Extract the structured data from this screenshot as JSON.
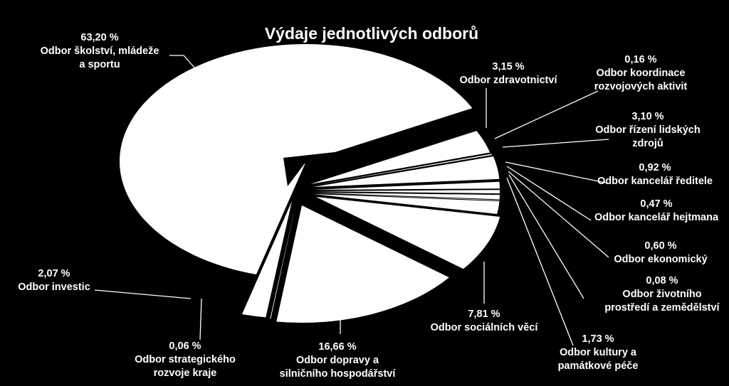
{
  "chart_data": {
    "type": "pie",
    "title": "Výdaje jednotlivých odborů",
    "slices": [
      {
        "label": [
          "Odbor školství, mládeže",
          "a sportu"
        ],
        "value_label": "63,20 %",
        "value": 63.2
      },
      {
        "label": [
          "Odbor zdravotnictví"
        ],
        "value_label": "3,15 %",
        "value": 3.15
      },
      {
        "label": [
          "Odbor koordinace",
          "rozvojových aktivit"
        ],
        "value_label": "0,16 %",
        "value": 0.16
      },
      {
        "label": [
          "Odbor řízení lidských",
          "zdrojů"
        ],
        "value_label": "3,10 %",
        "value": 3.1
      },
      {
        "label": [
          "Odbor kancelář ředitele"
        ],
        "value_label": "0,92 %",
        "value": 0.92
      },
      {
        "label": [
          "Odbor kancelář hejtmana"
        ],
        "value_label": "0,47 %",
        "value": 0.47
      },
      {
        "label": [
          "Odbor ekonomický"
        ],
        "value_label": "0,60 %",
        "value": 0.6
      },
      {
        "label": [
          "Odbor životního",
          "prostředí a zemědělství"
        ],
        "value_label": "0,08 %",
        "value": 0.08
      },
      {
        "label": [
          "Odbor kultury a",
          "památkové péče"
        ],
        "value_label": "1,73 %",
        "value": 1.73
      },
      {
        "label": [
          "Odbor sociálních věcí"
        ],
        "value_label": "7,81 %",
        "value": 7.81
      },
      {
        "label": [
          "Odbor dopravy a",
          "silničního hospodářství"
        ],
        "value_label": "16,66 %",
        "value": 16.66
      },
      {
        "label": [
          "Odbor strategického",
          "rozvoje kraje"
        ],
        "value_label": "0,06 %",
        "value": 0.06
      },
      {
        "label": [
          "Odbor investic"
        ],
        "value_label": "2,07 %",
        "value": 2.07
      }
    ],
    "legend": "none",
    "colors": {
      "background": "#000000",
      "slices": "#ffffff",
      "text": "#ffffff"
    }
  }
}
